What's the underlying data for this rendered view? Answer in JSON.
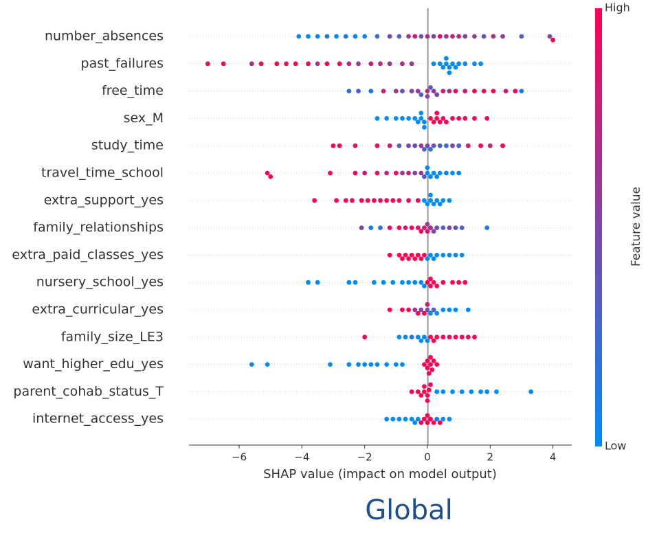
{
  "chart_data": {
    "type": "beeswarm",
    "xlabel": "SHAP value (impact on model output)",
    "xlim": [
      -7.6,
      4.6
    ],
    "xticks": [
      {
        "value": -6,
        "label": "−6"
      },
      {
        "value": -4,
        "label": "−4"
      },
      {
        "value": -2,
        "label": "−2"
      },
      0,
      2,
      4
    ],
    "colorbar": {
      "label": "Feature value",
      "high": "High",
      "low": "Low",
      "colors": [
        "#008bfb",
        "#ff0052"
      ]
    },
    "series": [
      {
        "name": "number_absences",
        "shap": [
          -4.1,
          -3.8,
          -3.5,
          -3.2,
          -2.9,
          -2.6,
          -2.3,
          -2.0,
          -1.6,
          -1.2,
          -0.9,
          -0.6,
          -0.4,
          -0.2,
          0,
          0.2,
          0.4,
          0.6,
          0.8,
          1.0,
          1.2,
          1.5,
          1.8,
          2.1,
          2.4,
          3.0,
          3.9,
          4.0
        ],
        "feature_value": [
          0,
          0,
          0,
          0.1,
          0,
          0.1,
          0,
          0,
          0.2,
          0.5,
          0.3,
          0.6,
          0.8,
          0.4,
          0.7,
          0.5,
          0.9,
          0.6,
          0.8,
          0.7,
          0.5,
          0.6,
          0.4,
          0.7,
          0.6,
          0.3,
          0.5,
          1
        ]
      },
      {
        "name": "past_failures",
        "shap": [
          -7.0,
          -6.5,
          -5.6,
          -5.3,
          -4.8,
          -4.5,
          -4.2,
          -3.8,
          -3.5,
          -3.2,
          -2.8,
          -2.5,
          -2.2,
          -1.8,
          -1.5,
          -1.2,
          -0.8,
          -0.5,
          0.2,
          0.4,
          0.5,
          0.6,
          0.6,
          0.7,
          0.7,
          0.8,
          0.9,
          1.0,
          1.2,
          1.5,
          1.7
        ],
        "feature_value": [
          1,
          1,
          0.7,
          1,
          1,
          0.9,
          1,
          1,
          0.6,
          1,
          1,
          0.7,
          0.6,
          0.8,
          0.7,
          0.6,
          0.7,
          0.6,
          0,
          0,
          0,
          0,
          0,
          0,
          0,
          0,
          0,
          0,
          0,
          0,
          0
        ]
      },
      {
        "name": "free_time",
        "shap": [
          -2.5,
          -2.2,
          -1.8,
          -1.4,
          -1.0,
          -0.8,
          -0.5,
          -0.3,
          -0.2,
          0,
          0,
          0.1,
          0.2,
          0.3,
          0.5,
          0.7,
          0.9,
          1.2,
          1.5,
          1.8,
          2.1,
          2.5,
          2.8,
          3.0
        ],
        "feature_value": [
          0.2,
          0.3,
          0.1,
          0.8,
          0.6,
          0.4,
          0.5,
          0.6,
          0.3,
          0.7,
          0.5,
          0.4,
          0.6,
          0.5,
          0.8,
          0.7,
          0.9,
          0.8,
          1,
          0.9,
          1,
          0.8,
          1,
          0.1
        ]
      },
      {
        "name": "sex_M",
        "shap": [
          -1.6,
          -1.3,
          -1.0,
          -0.8,
          -0.6,
          -0.4,
          -0.3,
          -0.2,
          -0.2,
          -0.1,
          -0.1,
          0.1,
          0.2,
          0.3,
          0.3,
          0.4,
          0.5,
          0.6,
          0.8,
          1.0,
          1.2,
          1.5,
          1.9
        ],
        "feature_value": [
          0,
          0,
          0,
          0,
          0,
          0,
          0,
          0,
          0,
          0,
          0,
          1,
          1,
          1,
          1,
          1,
          1,
          1,
          1,
          1,
          1,
          1,
          1
        ]
      },
      {
        "name": "study_time",
        "shap": [
          -3.0,
          -2.8,
          -2.3,
          -1.6,
          -1.2,
          -0.9,
          -0.6,
          -0.4,
          -0.2,
          -0.1,
          0,
          0.1,
          0.2,
          0.4,
          0.6,
          0.8,
          1.0,
          1.3,
          1.7,
          2.0,
          2.4
        ],
        "feature_value": [
          1,
          1,
          0.9,
          1,
          0.8,
          0.3,
          0.5,
          0.4,
          0.6,
          0.3,
          0.5,
          0.2,
          0.4,
          0.3,
          0.2,
          0.5,
          0.3,
          0.8,
          1,
          0.7,
          1
        ]
      },
      {
        "name": "travel_time_school",
        "shap": [
          -5.1,
          -5.0,
          -3.1,
          -2.3,
          -2.0,
          -1.6,
          -1.3,
          -1.0,
          -0.8,
          -0.6,
          -0.4,
          -0.2,
          -0.1,
          0,
          0,
          0.1,
          0.2,
          0.3,
          0.4,
          0.6,
          0.8,
          1.0
        ],
        "feature_value": [
          1,
          1,
          1,
          1,
          0.8,
          1,
          0.7,
          1,
          0.6,
          0.8,
          0.5,
          0.6,
          0.3,
          0,
          0,
          0,
          0,
          0,
          0,
          0,
          0,
          0
        ]
      },
      {
        "name": "extra_support_yes",
        "shap": [
          -3.6,
          -2.9,
          -2.6,
          -2.4,
          -2.1,
          -1.9,
          -1.7,
          -1.5,
          -1.3,
          -1.1,
          -0.9,
          -0.6,
          -0.3,
          -0.1,
          0,
          0.1,
          0.1,
          0.2,
          0.3,
          0.4,
          0.5,
          0.7
        ],
        "feature_value": [
          1,
          1,
          1,
          1,
          1,
          1,
          1,
          1,
          1,
          1,
          1,
          1,
          1,
          0,
          0,
          0,
          0,
          0,
          0,
          0,
          0,
          0
        ]
      },
      {
        "name": "family_relationships",
        "shap": [
          -2.1,
          -1.8,
          -1.5,
          -1.2,
          -0.9,
          -0.7,
          -0.5,
          -0.3,
          -0.2,
          -0.1,
          0,
          0,
          0.1,
          0.2,
          0.3,
          0.5,
          0.7,
          0.9,
          1.1,
          1.9
        ],
        "feature_value": [
          0.5,
          0.1,
          0.2,
          0.9,
          1,
          0.8,
          1,
          0.9,
          1,
          0.8,
          0.9,
          0.6,
          0.7,
          0.5,
          0.4,
          0.3,
          0.5,
          0.4,
          0.3,
          0.1
        ]
      },
      {
        "name": "extra_paid_classes_yes",
        "shap": [
          -1.2,
          -0.9,
          -0.8,
          -0.7,
          -0.6,
          -0.5,
          -0.4,
          -0.3,
          -0.2,
          -0.1,
          0,
          0.1,
          0.2,
          0.3,
          0.5,
          0.7,
          0.9,
          1.1
        ],
        "feature_value": [
          1,
          1,
          1,
          1,
          1,
          1,
          1,
          1,
          1,
          1,
          0,
          0,
          0,
          0,
          0,
          0,
          0,
          0
        ]
      },
      {
        "name": "nursery_school_yes",
        "shap": [
          -3.8,
          -3.5,
          -2.5,
          -2.3,
          -1.7,
          -1.4,
          -1.1,
          -0.8,
          -0.6,
          -0.4,
          -0.2,
          -0.1,
          0,
          0.1,
          0.1,
          0.2,
          0.3,
          0.5,
          0.8,
          1.0,
          1.2
        ],
        "feature_value": [
          0,
          0,
          0,
          0,
          0,
          0,
          0,
          0,
          0,
          0,
          0,
          0,
          1,
          1,
          1,
          1,
          1,
          1,
          1,
          1,
          1
        ]
      },
      {
        "name": "extra_curricular_yes",
        "shap": [
          -1.2,
          -0.8,
          -0.6,
          -0.4,
          -0.3,
          -0.2,
          -0.1,
          0,
          0,
          0.1,
          0.2,
          0.3,
          0.5,
          0.7,
          0.9,
          1.3
        ],
        "feature_value": [
          1,
          1,
          1,
          0.6,
          1,
          0.5,
          1,
          0.4,
          0.8,
          0,
          0.3,
          0,
          0,
          0,
          0,
          0
        ]
      },
      {
        "name": "family_size_LE3",
        "shap": [
          -2.0,
          -0.9,
          -0.7,
          -0.5,
          -0.3,
          -0.2,
          -0.1,
          0,
          0.1,
          0.2,
          0.3,
          0.5,
          0.7,
          0.9,
          1.1,
          1.3,
          1.5
        ],
        "feature_value": [
          1,
          0,
          0,
          0.2,
          0,
          0,
          0,
          0,
          1,
          1,
          1,
          1,
          1,
          1,
          1,
          1,
          1
        ]
      },
      {
        "name": "want_higher_edu_yes",
        "shap": [
          -5.6,
          -5.1,
          -3.1,
          -2.5,
          -2.2,
          -2.0,
          -1.8,
          -1.6,
          -1.3,
          -1.0,
          -0.8,
          -0.1,
          0,
          0,
          0.05,
          0.1,
          0.1,
          0.15,
          0.2,
          0.3
        ],
        "feature_value": [
          0,
          0,
          0,
          0,
          0,
          0,
          0,
          0,
          0,
          0,
          0,
          1,
          1,
          1,
          1,
          1,
          1,
          1,
          1,
          1
        ]
      },
      {
        "name": "parent_cohab_status_T",
        "shap": [
          -0.5,
          -0.3,
          -0.2,
          -0.1,
          -0.1,
          0,
          0,
          0.05,
          0.1,
          0.3,
          0.5,
          0.8,
          1.1,
          1.4,
          1.7,
          1.9,
          2.2,
          3.3
        ],
        "feature_value": [
          1,
          1,
          1,
          1,
          1,
          1,
          1,
          1,
          1,
          0,
          0,
          0,
          0,
          0,
          0,
          0,
          0,
          0
        ]
      },
      {
        "name": "internet_access_yes",
        "shap": [
          -1.3,
          -1.1,
          -0.9,
          -0.7,
          -0.5,
          -0.4,
          -0.3,
          -0.2,
          -0.1,
          0,
          0,
          0.1,
          0.2,
          0.3,
          0.4,
          0.5,
          0.7
        ],
        "feature_value": [
          0,
          0,
          0,
          0,
          0,
          0,
          0,
          1,
          1,
          1,
          1,
          1,
          1,
          0,
          1,
          0,
          0
        ]
      }
    ]
  },
  "caption": "Global"
}
